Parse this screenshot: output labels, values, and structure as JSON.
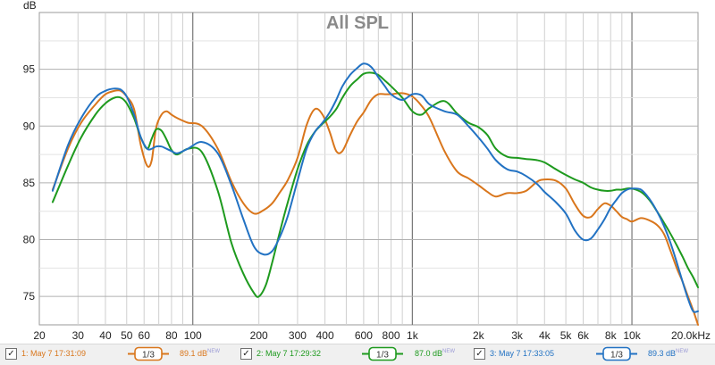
{
  "chart_data": {
    "type": "line",
    "title": "All SPL",
    "ylabel": "dB",
    "x_scale": "log",
    "xlim": [
      20,
      20000
    ],
    "ylim": [
      72.5,
      100
    ],
    "grid": true,
    "y_ticks": [
      75,
      80,
      85,
      90,
      95
    ],
    "x_ticks": [
      {
        "value": 20,
        "label": "20"
      },
      {
        "value": 30,
        "label": "30"
      },
      {
        "value": 40,
        "label": "40"
      },
      {
        "value": 50,
        "label": "50"
      },
      {
        "value": 60,
        "label": "60"
      },
      {
        "value": 80,
        "label": "80"
      },
      {
        "value": 100,
        "label": "100"
      },
      {
        "value": 200,
        "label": "200"
      },
      {
        "value": 300,
        "label": "300"
      },
      {
        "value": 400,
        "label": "400"
      },
      {
        "value": 600,
        "label": "600"
      },
      {
        "value": 800,
        "label": "800"
      },
      {
        "value": 1000,
        "label": "1k"
      },
      {
        "value": 2000,
        "label": "2k"
      },
      {
        "value": 3000,
        "label": "3k"
      },
      {
        "value": 4000,
        "label": "4k"
      },
      {
        "value": 5000,
        "label": "5k"
      },
      {
        "value": 6000,
        "label": "6k"
      },
      {
        "value": 8000,
        "label": "8k"
      },
      {
        "value": 10000,
        "label": "10k"
      },
      {
        "value": 20000,
        "label": "20.0kHz"
      }
    ],
    "series": [
      {
        "name": "1: May 7 17:31:09",
        "color": "#d9761c",
        "smoothing": "1/3",
        "avg_spl": "89.1 dB",
        "x": [
          23,
          27,
          31,
          36,
          40,
          44,
          47,
          50,
          54,
          58,
          62,
          65,
          68,
          72,
          76,
          80,
          85,
          95,
          110,
          130,
          150,
          170,
          190,
          210,
          230,
          250,
          270,
          300,
          330,
          360,
          390,
          420,
          450,
          480,
          520,
          560,
          600,
          650,
          700,
          750,
          800,
          900,
          1000,
          1100,
          1200,
          1400,
          1600,
          1800,
          2000,
          2200,
          2400,
          2700,
          3000,
          3300,
          3700,
          4000,
          4500,
          5000,
          5500,
          6000,
          6500,
          7000,
          7500,
          8000,
          8500,
          9000,
          9500,
          10000,
          11000,
          12000,
          13000,
          14000,
          15000,
          16000,
          17000,
          18000,
          19000,
          20000
        ],
        "y": [
          84.4,
          88.0,
          90.3,
          91.9,
          92.8,
          93.1,
          93.1,
          92.6,
          91.5,
          88.3,
          86.5,
          87.0,
          89.8,
          91.0,
          91.3,
          91.0,
          90.7,
          90.3,
          90.0,
          88.0,
          85.1,
          83.2,
          82.3,
          82.6,
          83.2,
          84.2,
          85.2,
          87.2,
          90.1,
          91.5,
          91.0,
          89.5,
          87.8,
          87.8,
          89.2,
          90.4,
          91.2,
          92.3,
          92.8,
          92.8,
          92.8,
          92.9,
          92.6,
          91.8,
          90.7,
          87.8,
          86.0,
          85.4,
          84.8,
          84.2,
          83.8,
          84.1,
          84.1,
          84.3,
          85.1,
          85.3,
          85.2,
          84.5,
          83.1,
          82.1,
          82.0,
          82.7,
          83.2,
          83.0,
          82.5,
          82.0,
          81.8,
          81.6,
          81.9,
          81.7,
          81.3,
          80.5,
          79.0,
          77.5,
          76.3,
          75.0,
          73.8,
          72.5
        ]
      },
      {
        "name": "2: May 7 17:29:32",
        "color": "#1e9a1e",
        "smoothing": "1/3",
        "avg_spl": "87.0 dB",
        "x": [
          23,
          27,
          31,
          36,
          40,
          44,
          47,
          50,
          54,
          58,
          62,
          65,
          68,
          72,
          76,
          80,
          85,
          95,
          110,
          130,
          150,
          170,
          190,
          200,
          215,
          230,
          250,
          270,
          300,
          330,
          360,
          390,
          420,
          450,
          480,
          520,
          560,
          600,
          650,
          700,
          750,
          800,
          900,
          1000,
          1100,
          1200,
          1400,
          1600,
          1800,
          2000,
          2200,
          2400,
          2700,
          3000,
          3300,
          3700,
          4000,
          4500,
          5000,
          5500,
          6000,
          6500,
          7000,
          7500,
          8000,
          8500,
          9000,
          9500,
          10000,
          11000,
          12000,
          13000,
          14000,
          15000,
          16000,
          17000,
          18000,
          19000,
          20000
        ],
        "y": [
          83.3,
          86.5,
          89.0,
          91.0,
          92.0,
          92.5,
          92.5,
          92.0,
          90.7,
          89.0,
          88.0,
          88.9,
          89.7,
          89.6,
          88.8,
          87.9,
          87.5,
          88.0,
          87.7,
          84.3,
          79.7,
          77.0,
          75.3,
          75.0,
          76.0,
          78.0,
          80.8,
          83.2,
          86.2,
          88.3,
          89.5,
          90.2,
          90.8,
          91.5,
          92.5,
          93.5,
          94.1,
          94.6,
          94.7,
          94.5,
          94.0,
          93.5,
          92.5,
          91.3,
          91.0,
          91.6,
          92.2,
          91.1,
          90.3,
          89.9,
          89.2,
          88.0,
          87.3,
          87.2,
          87.1,
          87.0,
          86.8,
          86.2,
          85.7,
          85.3,
          85.0,
          84.6,
          84.4,
          84.3,
          84.3,
          84.4,
          84.4,
          84.5,
          84.5,
          84.2,
          83.5,
          82.5,
          81.5,
          80.5,
          79.5,
          78.5,
          77.5,
          76.7,
          75.8
        ]
      },
      {
        "name": "3: May 7 17:33:05",
        "color": "#2272c3",
        "smoothing": "1/3",
        "avg_spl": "89.3 dB",
        "x": [
          23,
          27,
          31,
          36,
          40,
          44,
          47,
          50,
          54,
          58,
          62,
          65,
          68,
          72,
          76,
          80,
          85,
          95,
          110,
          130,
          150,
          170,
          190,
          210,
          230,
          250,
          270,
          300,
          330,
          360,
          390,
          420,
          450,
          480,
          520,
          560,
          600,
          650,
          700,
          750,
          800,
          900,
          1000,
          1100,
          1200,
          1400,
          1600,
          1800,
          2000,
          2200,
          2400,
          2700,
          3000,
          3300,
          3700,
          4000,
          4500,
          5000,
          5500,
          6000,
          6500,
          7000,
          7500,
          8000,
          8500,
          9000,
          9500,
          10000,
          11000,
          12000,
          13000,
          14000,
          15000,
          16000,
          17000,
          18000,
          19000,
          20000
        ],
        "y": [
          84.3,
          88.3,
          90.7,
          92.5,
          93.1,
          93.3,
          93.2,
          92.6,
          91.0,
          89.0,
          88.0,
          88.0,
          88.2,
          88.2,
          88.0,
          87.8,
          87.6,
          88.0,
          88.6,
          87.6,
          84.8,
          81.8,
          79.4,
          78.7,
          79.0,
          80.3,
          82.0,
          85.2,
          88.0,
          89.5,
          90.3,
          91.2,
          92.3,
          93.5,
          94.5,
          95.1,
          95.5,
          95.2,
          94.3,
          93.5,
          92.8,
          92.3,
          92.8,
          92.7,
          91.9,
          91.3,
          91.0,
          90.0,
          89.0,
          88.0,
          87.0,
          86.2,
          86.0,
          85.6,
          84.9,
          84.2,
          83.3,
          82.3,
          80.8,
          80.0,
          80.1,
          80.9,
          81.8,
          82.8,
          83.5,
          84.1,
          84.4,
          84.5,
          84.4,
          83.6,
          82.5,
          81.2,
          79.7,
          78.0,
          76.3,
          74.8,
          73.7,
          73.7
        ]
      }
    ]
  },
  "legend": [
    {
      "label": "1: May 7 17:31:09",
      "smoothing": "1/3",
      "spl": "89.1 dB",
      "new_tag": "NEW",
      "checked": "✓"
    },
    {
      "label": "2: May 7 17:29:32",
      "smoothing": "1/3",
      "spl": "87.0 dB",
      "new_tag": "NEW",
      "checked": "✓"
    },
    {
      "label": "3: May 7 17:33:05",
      "smoothing": "1/3",
      "spl": "89.3 dB",
      "new_tag": "NEW",
      "checked": "✓"
    }
  ]
}
